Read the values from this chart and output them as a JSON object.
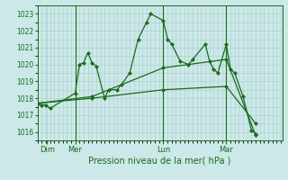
{
  "xlabel": "Pression niveau de la mer( hPa )",
  "bg_color": "#cce8e8",
  "line_color": "#1a6b1a",
  "grid_color": "#aacccc",
  "ylim": [
    1015.5,
    1023.5
  ],
  "yticks": [
    1016,
    1017,
    1018,
    1019,
    1020,
    1021,
    1022,
    1023
  ],
  "xlim": [
    0,
    175
  ],
  "day_labels": [
    "Dim",
    "Mer",
    "Lun",
    "Mar"
  ],
  "day_positions": [
    7,
    27,
    90,
    135
  ],
  "vline_positions": [
    27,
    90,
    135
  ],
  "series": [
    [
      0,
      1017.7,
      3,
      1017.6,
      6,
      1017.6,
      9,
      1017.4,
      27,
      1018.3,
      30,
      1020.0,
      33,
      1020.1,
      36,
      1020.7,
      39,
      1020.1,
      42,
      1019.9,
      48,
      1018.0,
      51,
      1018.5,
      57,
      1018.5,
      60,
      1018.8,
      66,
      1019.5,
      72,
      1021.5,
      78,
      1022.5,
      81,
      1023.0,
      90,
      1022.6,
      93,
      1021.5,
      96,
      1021.2,
      102,
      1020.2,
      108,
      1020.0,
      111,
      1020.3,
      120,
      1021.2,
      123,
      1020.2,
      126,
      1019.7,
      129,
      1019.5,
      135,
      1021.2,
      138,
      1019.7,
      141,
      1019.5,
      147,
      1018.1,
      153,
      1016.1,
      156,
      1015.9
    ],
    [
      0,
      1017.7,
      39,
      1018.1,
      90,
      1019.8,
      135,
      1020.3,
      156,
      1015.8
    ],
    [
      0,
      1017.7,
      39,
      1018.0,
      90,
      1018.5,
      135,
      1018.7,
      156,
      1016.5
    ]
  ]
}
